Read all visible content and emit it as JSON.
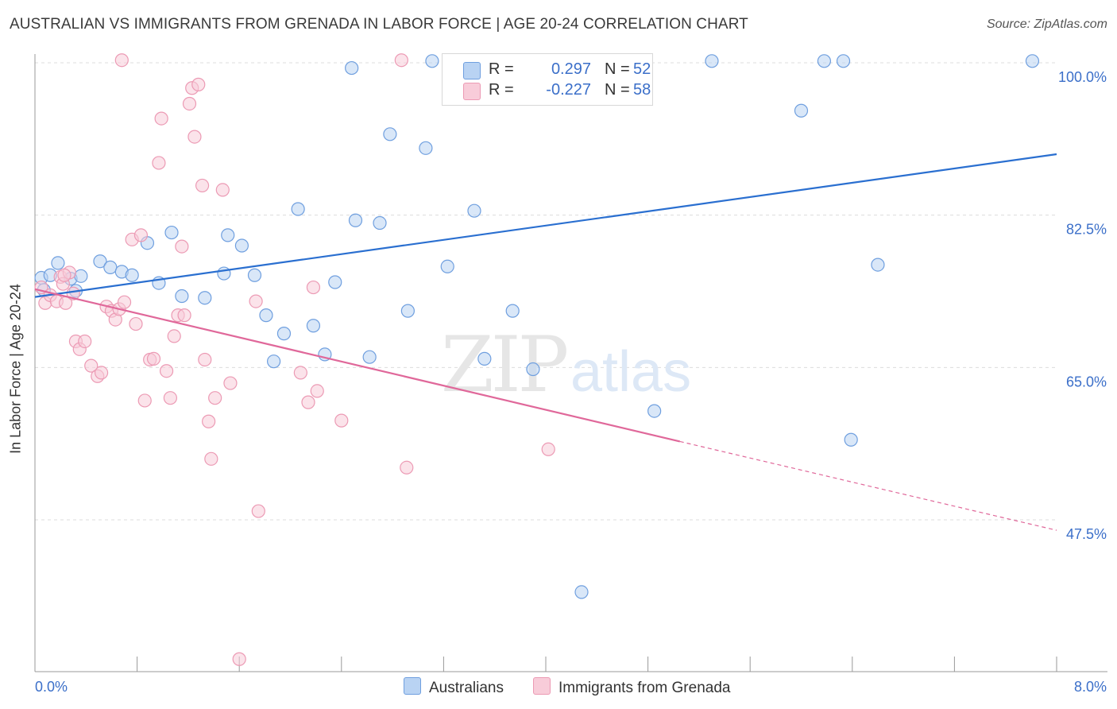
{
  "title": "AUSTRALIAN VS IMMIGRANTS FROM GRENADA IN LABOR FORCE | AGE 20-24 CORRELATION CHART",
  "source": "Source: ZipAtlas.com",
  "watermark": {
    "zip": "ZIP",
    "atlas": "atlas"
  },
  "legend": {
    "r_label": "R =",
    "n_label": "N =",
    "series": [
      {
        "name": "Australians",
        "r": "0.297",
        "n": "52",
        "color": "#a8c8f0"
      },
      {
        "name": "Immigrants from Grenada",
        "r": "-0.227",
        "n": "58",
        "color": "#f5b8cb"
      }
    ]
  },
  "chart_data": {
    "type": "scatter",
    "xlabel": "",
    "ylabel": "In Labor Force | Age 20-24",
    "xlim": [
      0.0,
      8.0
    ],
    "ylim": [
      31.0,
      102.0
    ],
    "x_tick_labels": [
      "0.0%",
      "8.0%"
    ],
    "y_ticks": [
      100.0,
      82.5,
      65.0,
      47.5
    ],
    "y_tick_labels": [
      "100.0%",
      "82.5%",
      "65.0%",
      "47.5%"
    ],
    "grid": "horizontal dashed",
    "legend_placement": "top-center and bottom",
    "series": [
      {
        "name": "Australians",
        "color": "#6f9fdf",
        "fill": "#b9d3f3",
        "trend": {
          "x": [
            0.0,
            8.0
          ],
          "y": [
            73.1,
            89.5
          ],
          "style": "solid",
          "color": "#2a6fd0"
        },
        "points": [
          [
            0.05,
            75.3
          ],
          [
            0.12,
            75.6
          ],
          [
            0.18,
            77.0
          ],
          [
            0.28,
            75.2
          ],
          [
            0.32,
            73.8
          ],
          [
            0.51,
            77.2
          ],
          [
            0.59,
            76.5
          ],
          [
            0.68,
            76.0
          ],
          [
            0.76,
            75.6
          ],
          [
            0.88,
            79.3
          ],
          [
            0.97,
            74.7
          ],
          [
            1.07,
            80.5
          ],
          [
            1.15,
            73.2
          ],
          [
            1.33,
            73.0
          ],
          [
            1.48,
            75.8
          ],
          [
            1.51,
            80.2
          ],
          [
            1.62,
            79.0
          ],
          [
            1.72,
            75.6
          ],
          [
            1.81,
            71.0
          ],
          [
            1.87,
            65.7
          ],
          [
            1.95,
            68.9
          ],
          [
            2.06,
            83.2
          ],
          [
            2.18,
            69.8
          ],
          [
            2.27,
            66.5
          ],
          [
            2.35,
            74.8
          ],
          [
            2.48,
            99.4
          ],
          [
            2.51,
            81.9
          ],
          [
            2.62,
            66.2
          ],
          [
            2.7,
            81.6
          ],
          [
            2.78,
            91.8
          ],
          [
            2.92,
            71.5
          ],
          [
            3.06,
            90.2
          ],
          [
            3.11,
            100.2
          ],
          [
            3.23,
            76.6
          ],
          [
            3.36,
            98.6
          ],
          [
            3.44,
            83.0
          ],
          [
            3.52,
            66.0
          ],
          [
            3.74,
            71.5
          ],
          [
            3.9,
            64.8
          ],
          [
            4.28,
            39.2
          ],
          [
            4.41,
            100.2
          ],
          [
            4.52,
            100.1
          ],
          [
            4.85,
            60.0
          ],
          [
            5.3,
            100.2
          ],
          [
            6.0,
            94.5
          ],
          [
            6.18,
            100.2
          ],
          [
            6.33,
            100.2
          ],
          [
            6.39,
            56.7
          ],
          [
            6.6,
            76.8
          ],
          [
            7.81,
            100.2
          ],
          [
            0.07,
            73.9
          ],
          [
            0.36,
            75.5
          ]
        ]
      },
      {
        "name": "Immigrants from Grenada",
        "color": "#ec9ab4",
        "fill": "#f8ccd9",
        "trend": {
          "x": [
            0.0,
            5.05
          ],
          "y": [
            74.0,
            56.5
          ],
          "style": "solid",
          "color": "#e0689a",
          "dashed_extension": {
            "x": [
              5.05,
              8.0
            ],
            "y": [
              56.5,
              46.3
            ]
          }
        },
        "points": [
          [
            0.05,
            74.2
          ],
          [
            0.08,
            72.4
          ],
          [
            0.12,
            73.3
          ],
          [
            0.17,
            72.6
          ],
          [
            0.2,
            75.4
          ],
          [
            0.24,
            72.4
          ],
          [
            0.22,
            74.6
          ],
          [
            0.27,
            75.9
          ],
          [
            0.23,
            75.6
          ],
          [
            0.3,
            73.5
          ],
          [
            0.32,
            68.0
          ],
          [
            0.35,
            67.1
          ],
          [
            0.39,
            68.0
          ],
          [
            0.44,
            65.2
          ],
          [
            0.49,
            64.0
          ],
          [
            0.52,
            64.4
          ],
          [
            0.56,
            72.0
          ],
          [
            0.6,
            71.5
          ],
          [
            0.63,
            70.5
          ],
          [
            0.66,
            71.7
          ],
          [
            0.7,
            72.5
          ],
          [
            0.76,
            79.7
          ],
          [
            0.79,
            70.0
          ],
          [
            0.83,
            80.2
          ],
          [
            0.86,
            61.2
          ],
          [
            0.9,
            65.9
          ],
          [
            0.93,
            66.0
          ],
          [
            0.97,
            88.5
          ],
          [
            0.99,
            93.6
          ],
          [
            1.03,
            64.6
          ],
          [
            1.06,
            61.5
          ],
          [
            1.09,
            68.6
          ],
          [
            1.12,
            71.0
          ],
          [
            1.15,
            78.9
          ],
          [
            1.17,
            71.0
          ],
          [
            1.21,
            95.3
          ],
          [
            1.23,
            97.1
          ],
          [
            1.25,
            91.5
          ],
          [
            1.28,
            97.5
          ],
          [
            1.31,
            85.9
          ],
          [
            1.33,
            65.9
          ],
          [
            1.36,
            58.8
          ],
          [
            1.38,
            54.5
          ],
          [
            1.41,
            61.5
          ],
          [
            1.47,
            85.4
          ],
          [
            1.53,
            63.2
          ],
          [
            1.6,
            31.5
          ],
          [
            1.73,
            72.6
          ],
          [
            1.75,
            48.5
          ],
          [
            2.08,
            64.4
          ],
          [
            2.14,
            61.0
          ],
          [
            2.18,
            74.2
          ],
          [
            2.21,
            62.3
          ],
          [
            2.4,
            58.9
          ],
          [
            2.91,
            53.5
          ],
          [
            4.02,
            55.6
          ],
          [
            0.68,
            100.3
          ],
          [
            2.87,
            100.3
          ]
        ]
      }
    ]
  }
}
